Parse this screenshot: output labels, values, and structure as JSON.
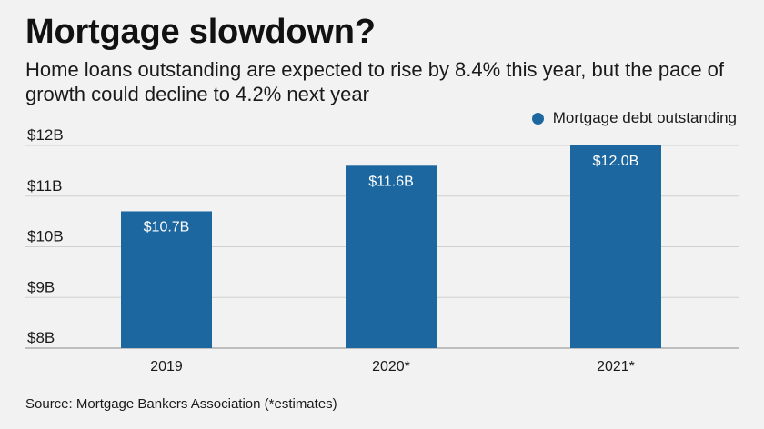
{
  "title": "Mortgage slowdown?",
  "subtitle": "Home loans outstanding are expected to rise by 8.4% this year, but the pace of growth could decline to 4.2% next year",
  "source": "Source: Mortgage Bankers Association (*estimates)",
  "colors": {
    "bar": "#1d67a0",
    "grid": "#cfd1d0",
    "axis": "#8a8a8a"
  },
  "chart_data": {
    "type": "bar",
    "categories": [
      "2019",
      "2020*",
      "2021*"
    ],
    "series": [
      {
        "name": "Mortgage debt outstanding",
        "values": [
          10.7,
          11.6,
          12.0
        ],
        "labels": [
          "$10.7B",
          "$11.6B",
          "$12.0B"
        ]
      }
    ],
    "y_ticks": [
      8,
      9,
      10,
      11,
      12
    ],
    "y_tick_labels": [
      "$8B",
      "$9B",
      "$10B",
      "$11B",
      "$12B"
    ],
    "ylim": [
      8,
      12
    ],
    "grid": true,
    "legend_position": "top-right",
    "xlabel": "",
    "ylabel": ""
  }
}
